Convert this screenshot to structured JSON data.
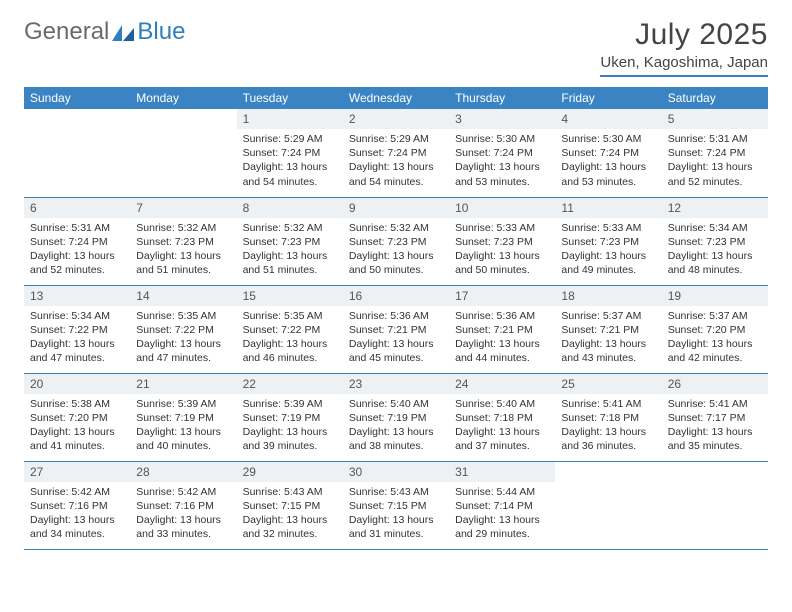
{
  "brand": {
    "part1": "General",
    "part2": "Blue"
  },
  "title": "July 2025",
  "location": "Uken, Kagoshima, Japan",
  "colors": {
    "header_bg": "#3b84c4",
    "header_text": "#ffffff",
    "daynum_bg": "#eef1f4",
    "border": "#3b7fbf",
    "text": "#333333"
  },
  "columns": [
    "Sunday",
    "Monday",
    "Tuesday",
    "Wednesday",
    "Thursday",
    "Friday",
    "Saturday"
  ],
  "weeks": [
    [
      null,
      null,
      {
        "n": "1",
        "sr": "5:29 AM",
        "ss": "7:24 PM",
        "dl": "13 hours and 54 minutes."
      },
      {
        "n": "2",
        "sr": "5:29 AM",
        "ss": "7:24 PM",
        "dl": "13 hours and 54 minutes."
      },
      {
        "n": "3",
        "sr": "5:30 AM",
        "ss": "7:24 PM",
        "dl": "13 hours and 53 minutes."
      },
      {
        "n": "4",
        "sr": "5:30 AM",
        "ss": "7:24 PM",
        "dl": "13 hours and 53 minutes."
      },
      {
        "n": "5",
        "sr": "5:31 AM",
        "ss": "7:24 PM",
        "dl": "13 hours and 52 minutes."
      }
    ],
    [
      {
        "n": "6",
        "sr": "5:31 AM",
        "ss": "7:24 PM",
        "dl": "13 hours and 52 minutes."
      },
      {
        "n": "7",
        "sr": "5:32 AM",
        "ss": "7:23 PM",
        "dl": "13 hours and 51 minutes."
      },
      {
        "n": "8",
        "sr": "5:32 AM",
        "ss": "7:23 PM",
        "dl": "13 hours and 51 minutes."
      },
      {
        "n": "9",
        "sr": "5:32 AM",
        "ss": "7:23 PM",
        "dl": "13 hours and 50 minutes."
      },
      {
        "n": "10",
        "sr": "5:33 AM",
        "ss": "7:23 PM",
        "dl": "13 hours and 50 minutes."
      },
      {
        "n": "11",
        "sr": "5:33 AM",
        "ss": "7:23 PM",
        "dl": "13 hours and 49 minutes."
      },
      {
        "n": "12",
        "sr": "5:34 AM",
        "ss": "7:23 PM",
        "dl": "13 hours and 48 minutes."
      }
    ],
    [
      {
        "n": "13",
        "sr": "5:34 AM",
        "ss": "7:22 PM",
        "dl": "13 hours and 47 minutes."
      },
      {
        "n": "14",
        "sr": "5:35 AM",
        "ss": "7:22 PM",
        "dl": "13 hours and 47 minutes."
      },
      {
        "n": "15",
        "sr": "5:35 AM",
        "ss": "7:22 PM",
        "dl": "13 hours and 46 minutes."
      },
      {
        "n": "16",
        "sr": "5:36 AM",
        "ss": "7:21 PM",
        "dl": "13 hours and 45 minutes."
      },
      {
        "n": "17",
        "sr": "5:36 AM",
        "ss": "7:21 PM",
        "dl": "13 hours and 44 minutes."
      },
      {
        "n": "18",
        "sr": "5:37 AM",
        "ss": "7:21 PM",
        "dl": "13 hours and 43 minutes."
      },
      {
        "n": "19",
        "sr": "5:37 AM",
        "ss": "7:20 PM",
        "dl": "13 hours and 42 minutes."
      }
    ],
    [
      {
        "n": "20",
        "sr": "5:38 AM",
        "ss": "7:20 PM",
        "dl": "13 hours and 41 minutes."
      },
      {
        "n": "21",
        "sr": "5:39 AM",
        "ss": "7:19 PM",
        "dl": "13 hours and 40 minutes."
      },
      {
        "n": "22",
        "sr": "5:39 AM",
        "ss": "7:19 PM",
        "dl": "13 hours and 39 minutes."
      },
      {
        "n": "23",
        "sr": "5:40 AM",
        "ss": "7:19 PM",
        "dl": "13 hours and 38 minutes."
      },
      {
        "n": "24",
        "sr": "5:40 AM",
        "ss": "7:18 PM",
        "dl": "13 hours and 37 minutes."
      },
      {
        "n": "25",
        "sr": "5:41 AM",
        "ss": "7:18 PM",
        "dl": "13 hours and 36 minutes."
      },
      {
        "n": "26",
        "sr": "5:41 AM",
        "ss": "7:17 PM",
        "dl": "13 hours and 35 minutes."
      }
    ],
    [
      {
        "n": "27",
        "sr": "5:42 AM",
        "ss": "7:16 PM",
        "dl": "13 hours and 34 minutes."
      },
      {
        "n": "28",
        "sr": "5:42 AM",
        "ss": "7:16 PM",
        "dl": "13 hours and 33 minutes."
      },
      {
        "n": "29",
        "sr": "5:43 AM",
        "ss": "7:15 PM",
        "dl": "13 hours and 32 minutes."
      },
      {
        "n": "30",
        "sr": "5:43 AM",
        "ss": "7:15 PM",
        "dl": "13 hours and 31 minutes."
      },
      {
        "n": "31",
        "sr": "5:44 AM",
        "ss": "7:14 PM",
        "dl": "13 hours and 29 minutes."
      },
      null,
      null
    ]
  ],
  "labels": {
    "sunrise": "Sunrise: ",
    "sunset": "Sunset: ",
    "daylight": "Daylight: "
  }
}
